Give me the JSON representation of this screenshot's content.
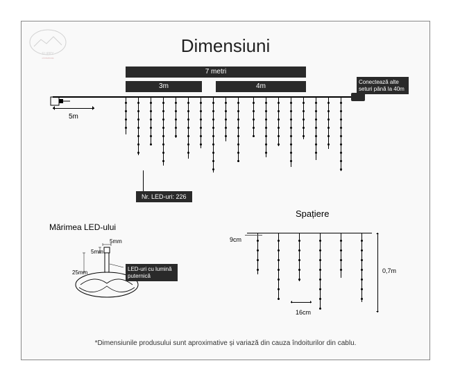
{
  "title": "Dimensiuni",
  "logo_text": "FLIPPY christmas",
  "main_diagram": {
    "total_width": "7 metri",
    "section_a": "3m",
    "section_b": "4m",
    "lead_cable": "5m",
    "connect_note": "Conectează alte seturi până la 40m",
    "led_count": "Nr. LED-uri: 226",
    "strand_positions": [
      0,
      18,
      36,
      54,
      72,
      90,
      108,
      126,
      144,
      162,
      184,
      202,
      220,
      238,
      256,
      274,
      292,
      310
    ],
    "strand_heights": [
      55,
      85,
      70,
      100,
      60,
      90,
      75,
      110,
      65,
      95,
      58,
      88,
      72,
      102,
      62,
      92,
      76,
      108
    ],
    "led_spacing": 12
  },
  "led_size": {
    "title": "Mărimea LED-ului",
    "width": "5mm",
    "height": "5mm",
    "bulb": "25mm",
    "description": "LED-uri cu lumină puternică"
  },
  "spacing": {
    "title": "Spațiere",
    "gap_top": "9cm",
    "gap_horiz": "16cm",
    "height": "0,7m",
    "strand_positions": [
      15,
      45,
      75,
      105,
      135,
      165
    ],
    "strand_heights": [
      60,
      95,
      70,
      110,
      65,
      100
    ],
    "led_spacing": 14
  },
  "footnote": "*Dimensiunile produsului sunt aproximative și variază din cauza îndoiturilor din cablu.",
  "colors": {
    "bar_bg": "#2a2a2a",
    "frame_bg": "#f9f9f9",
    "line": "#000000"
  }
}
